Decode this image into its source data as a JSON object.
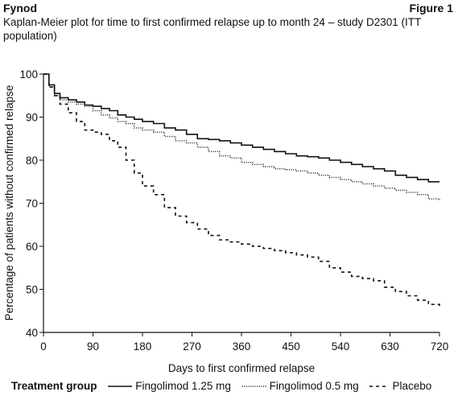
{
  "header": {
    "product": "Fynod",
    "figure": "Figure 1",
    "title": "Kaplan-Meier plot for time to first confirmed relapse up to month 24 – study D2301 (ITT population)"
  },
  "chart_data": {
    "type": "line",
    "xlabel": "Days to first confirmed relapse",
    "ylabel": "Percentage of patients without confirmed relapse",
    "xlim": [
      0,
      720
    ],
    "ylim": [
      40,
      100
    ],
    "xticks": [
      0,
      90,
      180,
      270,
      360,
      450,
      540,
      630,
      720
    ],
    "yticks": [
      40,
      50,
      60,
      70,
      80,
      90,
      100
    ],
    "grid": false,
    "legend_position": "bottom",
    "legend_title": "Treatment group",
    "series": [
      {
        "name": "Fingolimod 1.25 mg",
        "style": "solid",
        "x": [
          0,
          10,
          20,
          30,
          45,
          60,
          75,
          90,
          105,
          120,
          135,
          150,
          165,
          180,
          200,
          220,
          240,
          260,
          280,
          300,
          320,
          340,
          360,
          380,
          400,
          420,
          440,
          460,
          480,
          500,
          520,
          540,
          560,
          580,
          600,
          620,
          640,
          660,
          680,
          700,
          720
        ],
        "y": [
          100,
          97.5,
          95.5,
          94.5,
          94,
          93.5,
          92.8,
          92.5,
          92,
          91.5,
          90.5,
          90,
          89.5,
          89,
          88.5,
          87.5,
          87,
          86,
          85,
          84.8,
          84.5,
          84,
          83.5,
          83,
          82.5,
          82,
          81.5,
          81,
          80.8,
          80.5,
          80,
          79.5,
          79,
          78.5,
          78,
          77.5,
          76.5,
          76,
          75.5,
          75,
          75
        ]
      },
      {
        "name": "Fingolimod 0.5 mg",
        "style": "dotted",
        "x": [
          0,
          10,
          20,
          30,
          45,
          60,
          75,
          90,
          105,
          120,
          135,
          150,
          165,
          180,
          200,
          220,
          240,
          260,
          280,
          300,
          320,
          340,
          360,
          380,
          400,
          420,
          440,
          460,
          480,
          500,
          520,
          540,
          560,
          580,
          600,
          620,
          640,
          660,
          680,
          700,
          720
        ],
        "y": [
          100,
          97,
          95,
          94,
          93.5,
          93,
          92.5,
          91.5,
          90.5,
          89.8,
          89,
          88.5,
          87.5,
          87,
          86.5,
          85.5,
          84.5,
          84,
          83,
          82,
          81,
          80.5,
          79.5,
          79,
          78.5,
          78,
          77.8,
          77.5,
          77,
          76.5,
          76,
          75.5,
          75,
          74.5,
          74,
          73.5,
          73,
          72.5,
          72,
          71,
          70.5
        ]
      },
      {
        "name": "Placebo",
        "style": "dashed",
        "x": [
          0,
          10,
          20,
          30,
          45,
          60,
          75,
          90,
          105,
          120,
          135,
          150,
          165,
          180,
          200,
          220,
          240,
          260,
          280,
          300,
          320,
          340,
          360,
          380,
          400,
          420,
          440,
          460,
          480,
          500,
          520,
          540,
          560,
          580,
          600,
          620,
          640,
          660,
          680,
          700,
          720
        ],
        "y": [
          100,
          97,
          95,
          93,
          91,
          89,
          87,
          86.5,
          86,
          84.5,
          83,
          80,
          77,
          74,
          72,
          69,
          67,
          65.5,
          64,
          62.5,
          61.5,
          61,
          60.5,
          60,
          59.5,
          59,
          58.5,
          58,
          57.5,
          56.5,
          55,
          54,
          53,
          52.5,
          52,
          50.5,
          49.5,
          48.5,
          47.5,
          46.5,
          45.5
        ]
      }
    ]
  }
}
